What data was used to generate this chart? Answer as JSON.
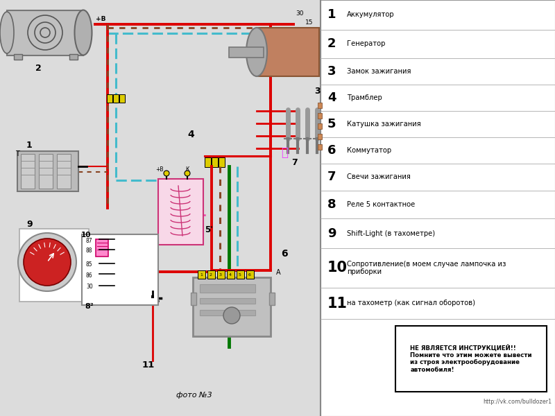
{
  "bg_left": "#e8e8e8",
  "bg_right": "#ffffff",
  "legend_items": [
    {
      "num": "1",
      "text": "Аккумулятор"
    },
    {
      "num": "2",
      "text": "Генератор"
    },
    {
      "num": "3",
      "text": "Замок зажигания"
    },
    {
      "num": "4",
      "text": "Трамблер"
    },
    {
      "num": "5",
      "text": "Катушка зажигания"
    },
    {
      "num": "6",
      "text": "Коммутатор"
    },
    {
      "num": "7",
      "text": "Свечи зажигания"
    },
    {
      "num": "8",
      "text": "Реле 5 контактное"
    },
    {
      "num": "9",
      "text": "Shift-Light (в тахометре)"
    },
    {
      "num": "10",
      "text": "Сопротивление(в моем случае лампочка из\nприборки"
    },
    {
      "num": "11",
      "text": "на тахометр (как сигнал оборотов)"
    }
  ],
  "warning_text": "НЕ ЯВЛЯЕТСЯ ИНСТРУКЦИЕЙ!!\nПомните что этим можете вывести\nиз строя электрооборудование\nавтомобиля!",
  "url_text": "http://vk.com/bulldozer1",
  "photo_caption": "фото №3",
  "c_red": "#dd0000",
  "c_green": "#007700",
  "c_cyan": "#44bbcc",
  "c_brown": "#884422",
  "c_yellow": "#ddcc00",
  "c_pink": "#ee44aa",
  "c_gray": "#aaaaaa",
  "c_darkgray": "#666666",
  "c_white": "#ffffff",
  "c_black": "#000000"
}
